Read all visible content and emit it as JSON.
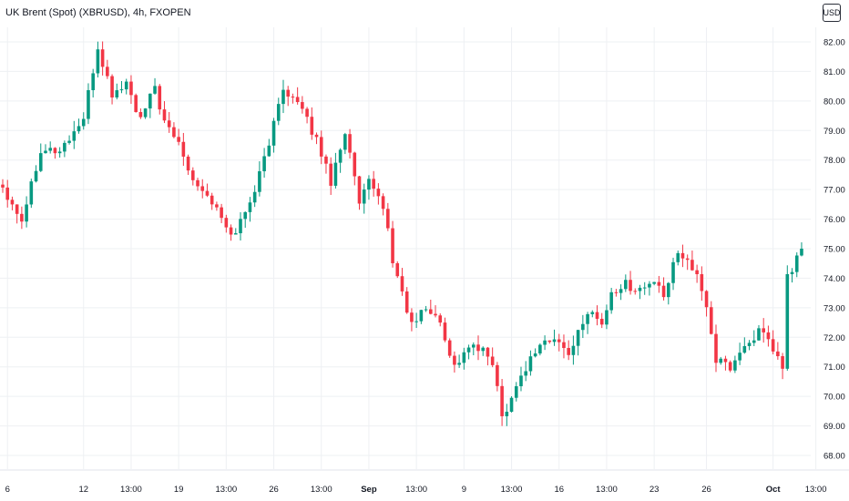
{
  "header": {
    "title": "UK Brent (Spot) (XBRUSD), 4h, FXOPEN",
    "currency": "USD"
  },
  "colors": {
    "up": "#089981",
    "down": "#f23645",
    "grid": "#eef0f3",
    "axis_text": "#131722"
  },
  "chart_data": {
    "type": "candlestick",
    "title": "UK Brent (Spot) (XBRUSD), 4h, FXOPEN",
    "ylim": [
      67.6,
      82.4
    ],
    "y_ticks": [
      "82.00",
      "81.00",
      "80.00",
      "79.00",
      "78.00",
      "77.00",
      "76.00",
      "75.00",
      "74.00",
      "73.00",
      "72.00",
      "71.00",
      "70.00",
      "69.00",
      "68.00"
    ],
    "x_ticks": [
      {
        "label": "6",
        "bar": 1,
        "bold": false
      },
      {
        "label": "12",
        "bar": 17,
        "bold": false
      },
      {
        "label": "13:00",
        "bar": 27,
        "bold": false
      },
      {
        "label": "19",
        "bar": 37,
        "bold": false
      },
      {
        "label": "13:00",
        "bar": 47,
        "bold": false
      },
      {
        "label": "26",
        "bar": 57,
        "bold": false
      },
      {
        "label": "13:00",
        "bar": 67,
        "bold": false
      },
      {
        "label": "Sep",
        "bar": 77,
        "bold": true
      },
      {
        "label": "13:00",
        "bar": 87,
        "bold": false
      },
      {
        "label": "9",
        "bar": 97,
        "bold": false
      },
      {
        "label": "13:00",
        "bar": 107,
        "bold": false
      },
      {
        "label": "16",
        "bar": 117,
        "bold": false
      },
      {
        "label": "13:00",
        "bar": 127,
        "bold": false
      },
      {
        "label": "23",
        "bar": 137,
        "bold": false
      },
      {
        "label": "26",
        "bar": 148,
        "bold": false
      },
      {
        "label": "Oct",
        "bar": 162,
        "bold": true
      },
      {
        "label": "13:00",
        "bar": 171,
        "bold": false
      }
    ],
    "grid": true,
    "close_path": [
      [
        0,
        77.1
      ],
      [
        4,
        76.0
      ],
      [
        8,
        78.4
      ],
      [
        12,
        78.3
      ],
      [
        17,
        79.4
      ],
      [
        20,
        81.8
      ],
      [
        23,
        80.2
      ],
      [
        26,
        80.6
      ],
      [
        29,
        79.3
      ],
      [
        32,
        80.5
      ],
      [
        34,
        79.2
      ],
      [
        37,
        78.6
      ],
      [
        40,
        77.4
      ],
      [
        44,
        76.6
      ],
      [
        48,
        75.4
      ],
      [
        51,
        76.2
      ],
      [
        54,
        77.5
      ],
      [
        57,
        79.2
      ],
      [
        59,
        80.5
      ],
      [
        62,
        79.9
      ],
      [
        66,
        78.7
      ],
      [
        69,
        77.3
      ],
      [
        72,
        79.0
      ],
      [
        75,
        76.5
      ],
      [
        77,
        77.2
      ],
      [
        80,
        76.5
      ],
      [
        82,
        74.6
      ],
      [
        86,
        72.4
      ],
      [
        89,
        73.0
      ],
      [
        92,
        72.5
      ],
      [
        95,
        71.0
      ],
      [
        98,
        71.7
      ],
      [
        101,
        71.5
      ],
      [
        103,
        71.2
      ],
      [
        105,
        69.3
      ],
      [
        107,
        70.0
      ],
      [
        110,
        71.0
      ],
      [
        113,
        71.8
      ],
      [
        116,
        71.9
      ],
      [
        119,
        71.5
      ],
      [
        122,
        72.4
      ],
      [
        124,
        73.0
      ],
      [
        126,
        72.4
      ],
      [
        128,
        73.5
      ],
      [
        131,
        73.8
      ],
      [
        134,
        73.6
      ],
      [
        137,
        73.9
      ],
      [
        139,
        73.3
      ],
      [
        142,
        75.0
      ],
      [
        145,
        74.4
      ],
      [
        148,
        73.1
      ],
      [
        150,
        71.2
      ],
      [
        153,
        71.0
      ],
      [
        156,
        71.7
      ],
      [
        159,
        72.2
      ],
      [
        161,
        71.8
      ],
      [
        164,
        71.0
      ],
      [
        165,
        74.0
      ],
      [
        168,
        75.0
      ]
    ]
  }
}
